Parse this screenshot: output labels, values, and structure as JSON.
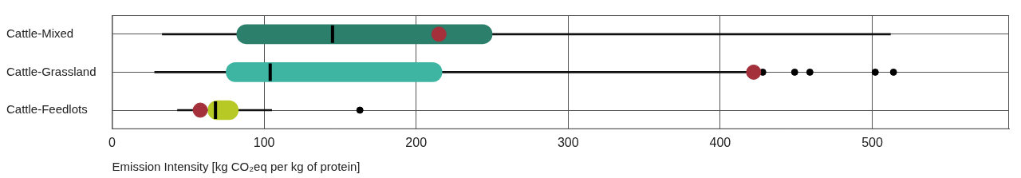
{
  "chart_data": {
    "type": "box",
    "orientation": "horizontal",
    "categories": [
      "Cattle-Mixed",
      "Cattle-Grassland",
      "Cattle-Feedlots"
    ],
    "colors": [
      "#2b7f6b",
      "#3db5a2",
      "#b6c925"
    ],
    "low": [
      33,
      28,
      43
    ],
    "q1": [
      82,
      75,
      63
    ],
    "median": [
      145,
      104,
      68
    ],
    "q3": [
      250,
      217,
      83
    ],
    "high": [
      512,
      425,
      105
    ],
    "outliers": [
      [],
      [
        428,
        449,
        459,
        502,
        514
      ],
      [
        163
      ]
    ],
    "markers": {
      "color": "#a3303a",
      "values": [
        215,
        422,
        58
      ]
    },
    "xlabel": "Emission Intensity [kg CO₂eq per kg of protein]",
    "xlim": [
      0,
      590
    ],
    "xticks": [
      0,
      100,
      200,
      300,
      400,
      500
    ],
    "grid": true
  }
}
